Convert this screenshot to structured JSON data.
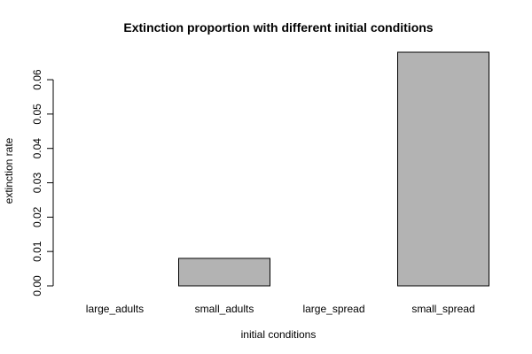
{
  "chart_data": {
    "type": "bar",
    "title": "Extinction proportion with different initial conditions",
    "xlabel": "initial conditions",
    "ylabel": "extinction rate",
    "categories": [
      "large_adults",
      "small_adults",
      "large_spread",
      "small_spread"
    ],
    "values": [
      0.0,
      0.008,
      0.0,
      0.068
    ],
    "ylim": [
      0,
      0.068
    ],
    "yticks": [
      0.0,
      0.01,
      0.02,
      0.03,
      0.04,
      0.05,
      0.06
    ],
    "ytick_labels": [
      "0.00",
      "0.01",
      "0.02",
      "0.03",
      "0.04",
      "0.05",
      "0.06"
    ],
    "bar_color": "#b3b3b3",
    "grid": false,
    "legend": "none"
  }
}
